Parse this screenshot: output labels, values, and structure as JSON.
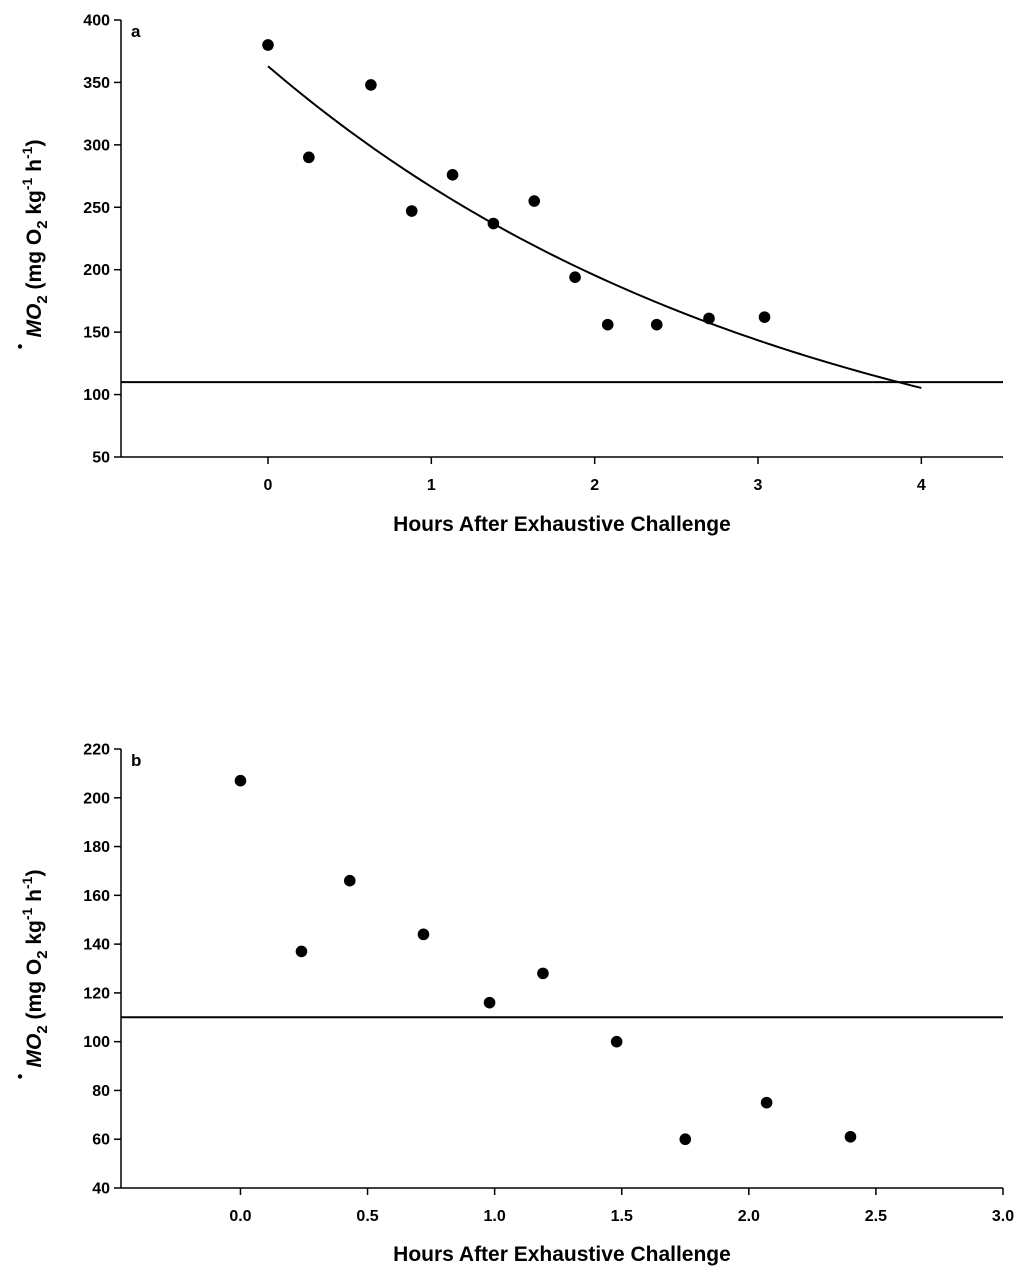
{
  "chart_data": [
    {
      "type": "scatter",
      "panel_label": "a",
      "xlabel": "Hours After Exhaustive Challenge",
      "ylabel": {
        "main": "MO",
        "sub2": "2",
        "paren_open": " (mg O",
        "sub2b": "2",
        "kg": " kg",
        "sup1": "-1",
        "h": " h",
        "sup2": "-1",
        "paren_close": ")"
      },
      "xlim": [
        -0.9,
        4.5
      ],
      "ylim": [
        50,
        400
      ],
      "xticks": [
        0,
        1,
        2,
        3,
        4
      ],
      "xtick_labels": [
        "0",
        "1",
        "2",
        "3",
        "4"
      ],
      "yticks": [
        50,
        100,
        150,
        200,
        250,
        300,
        350,
        400
      ],
      "ytick_labels": [
        "50",
        "100",
        "150",
        "200",
        "250",
        "300",
        "350",
        "400"
      ],
      "points": [
        {
          "x": 0.0,
          "y": 380
        },
        {
          "x": 0.25,
          "y": 290
        },
        {
          "x": 0.63,
          "y": 348
        },
        {
          "x": 0.88,
          "y": 247
        },
        {
          "x": 1.13,
          "y": 276
        },
        {
          "x": 1.38,
          "y": 237
        },
        {
          "x": 1.63,
          "y": 255
        },
        {
          "x": 1.88,
          "y": 194
        },
        {
          "x": 2.08,
          "y": 156
        },
        {
          "x": 2.38,
          "y": 156
        },
        {
          "x": 2.7,
          "y": 161
        },
        {
          "x": 3.04,
          "y": 162
        }
      ],
      "fit_curve": {
        "type": "exponential",
        "a": 363,
        "b": 0.3094,
        "x_range": [
          0,
          4
        ]
      },
      "reference_line": 110
    },
    {
      "type": "scatter",
      "panel_label": "b",
      "xlabel": "Hours After Exhaustive Challenge",
      "ylabel": {
        "main": "MO",
        "sub2": "2",
        "paren_open": " (mg O",
        "sub2b": "2",
        "kg": " kg",
        "sup1": "-1",
        "h": " h",
        "sup2": "-1",
        "paren_close": ")"
      },
      "xlim": [
        -0.47,
        3.0
      ],
      "ylim": [
        40,
        220
      ],
      "xticks": [
        0.0,
        0.5,
        1.0,
        1.5,
        2.0,
        2.5,
        3.0
      ],
      "xtick_labels": [
        "0.0",
        "0.5",
        "1.0",
        "1.5",
        "2.0",
        "2.5",
        "3.0"
      ],
      "yticks": [
        40,
        60,
        80,
        100,
        120,
        140,
        160,
        180,
        200,
        220
      ],
      "ytick_labels": [
        "40",
        "60",
        "80",
        "100",
        "120",
        "140",
        "160",
        "180",
        "200",
        "220"
      ],
      "points": [
        {
          "x": 0.0,
          "y": 207
        },
        {
          "x": 0.24,
          "y": 137
        },
        {
          "x": 0.43,
          "y": 166
        },
        {
          "x": 0.72,
          "y": 144
        },
        {
          "x": 0.98,
          "y": 116
        },
        {
          "x": 1.19,
          "y": 128
        },
        {
          "x": 1.48,
          "y": 100
        },
        {
          "x": 1.75,
          "y": 60
        },
        {
          "x": 2.07,
          "y": 75
        },
        {
          "x": 2.4,
          "y": 61
        }
      ],
      "reference_line": 110
    }
  ]
}
